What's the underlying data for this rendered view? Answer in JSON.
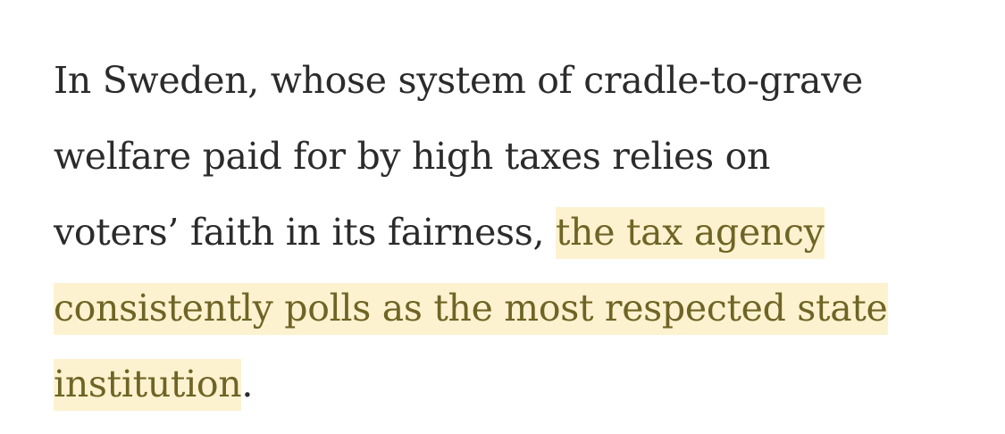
{
  "article": {
    "lines": [
      {
        "plain": "In Sweden, whose system of cradle-to-grave",
        "highlight": ""
      },
      {
        "plain": "welfare paid for by high taxes relies on",
        "highlight": ""
      },
      {
        "plain": "voters’ faith in its fairness, ",
        "highlight": "the tax agency"
      },
      {
        "plain": "",
        "highlight": "consistently polls as the most respected state"
      },
      {
        "plain": "",
        "highlight": "institution",
        "after": "."
      }
    ]
  },
  "colors": {
    "text": "#2b2b2b",
    "highlight_background": "#fdf2cf",
    "highlight_text": "#6e6425",
    "page_background": "#ffffff"
  }
}
